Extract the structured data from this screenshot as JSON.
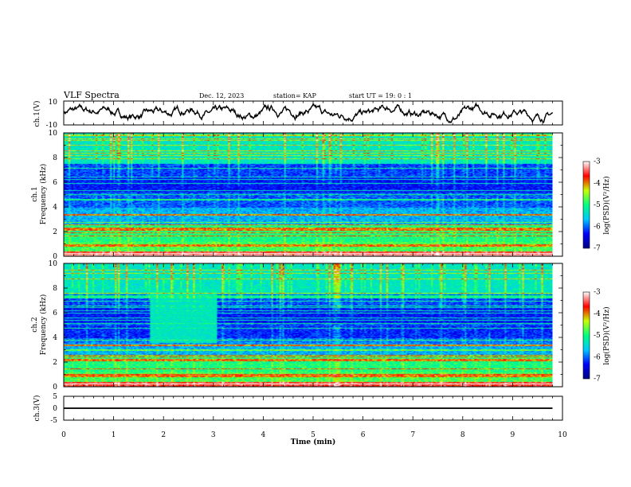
{
  "header": {
    "title": "VLF Spectra",
    "date": "Dec. 12, 2023",
    "station": "station= KAP",
    "start": "start  UT =   19: 0  : 1"
  },
  "colorbar": {
    "label": "log(PSD)(V²/Hz)",
    "ticks": [
      "-3",
      "-4",
      "-5",
      "-6",
      "-7"
    ],
    "range": [
      -7,
      -3
    ],
    "colors": [
      "#000080",
      "#0000ff",
      "#00c8ff",
      "#00ff80",
      "#c8ff00",
      "#ff0000",
      "#ffffff"
    ]
  },
  "chart_data": [
    {
      "type": "line",
      "ylabel": "ch.1(V)",
      "xlim": [
        0,
        10
      ],
      "ylim": [
        -10,
        10
      ],
      "yticks": [
        "10",
        "-10"
      ],
      "x_end": 9.8
    },
    {
      "type": "heatmap",
      "ylabel_channel": "ch.1",
      "ylabel": "Frequency (kHz)",
      "ylim": [
        0,
        10
      ],
      "yticks": [
        "0",
        "2",
        "4",
        "6",
        "8",
        "10"
      ],
      "xlim": [
        0,
        10
      ],
      "x_end": 9.8,
      "colorscale_range": [
        -7,
        -3
      ]
    },
    {
      "type": "heatmap",
      "ylabel_channel": "ch.2",
      "ylabel": "Frequency (kHz)",
      "ylim": [
        0,
        10
      ],
      "yticks": [
        "0",
        "2",
        "4",
        "6",
        "8",
        "10"
      ],
      "xlim": [
        0,
        10
      ],
      "x_end": 9.8,
      "colorscale_range": [
        -7,
        -3
      ]
    },
    {
      "type": "line",
      "ylabel": "ch.3(V)",
      "xlim": [
        0,
        10
      ],
      "ylim": [
        -5,
        5
      ],
      "yticks": [
        "5",
        "0",
        "-5"
      ],
      "x_end": 9.8
    }
  ],
  "xaxis": {
    "label": "Time (min)",
    "ticks": [
      "0",
      "1",
      "2",
      "3",
      "4",
      "5",
      "6",
      "7",
      "8",
      "9",
      "10"
    ]
  }
}
